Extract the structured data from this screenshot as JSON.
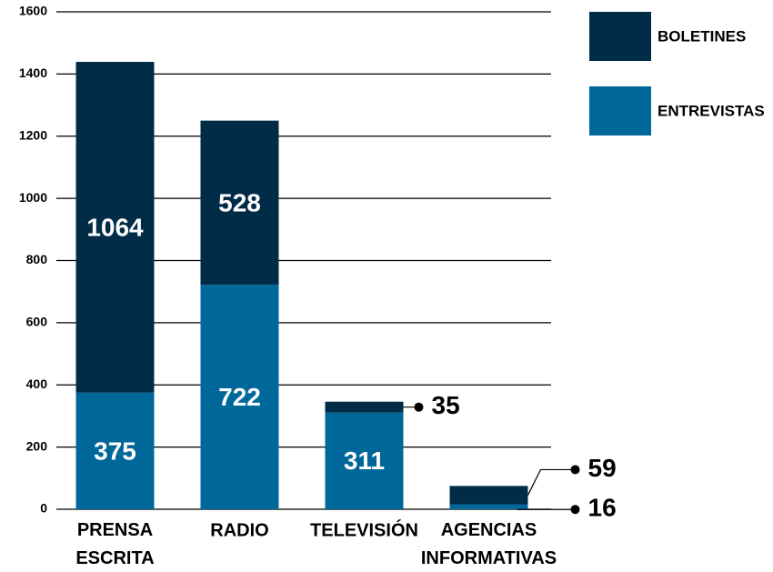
{
  "chart_data": {
    "type": "stacked_bar",
    "categories": [
      "PRENSA ESCRITA",
      "RADIO",
      "TELEVISIÓN",
      "AGENCIAS INFORMATIVAS"
    ],
    "series": [
      {
        "name": "ENTREVISTAS",
        "color": "#00679b",
        "values": [
          375,
          722,
          311,
          16
        ]
      },
      {
        "name": "BOLETINES",
        "color": "#002c47",
        "values": [
          1064,
          528,
          35,
          59
        ]
      }
    ],
    "ylim": [
      0,
      1600
    ],
    "yticks": [
      0,
      200,
      400,
      600,
      800,
      1000,
      1200,
      1400,
      1600
    ],
    "grid": true,
    "legend": "upper right"
  }
}
